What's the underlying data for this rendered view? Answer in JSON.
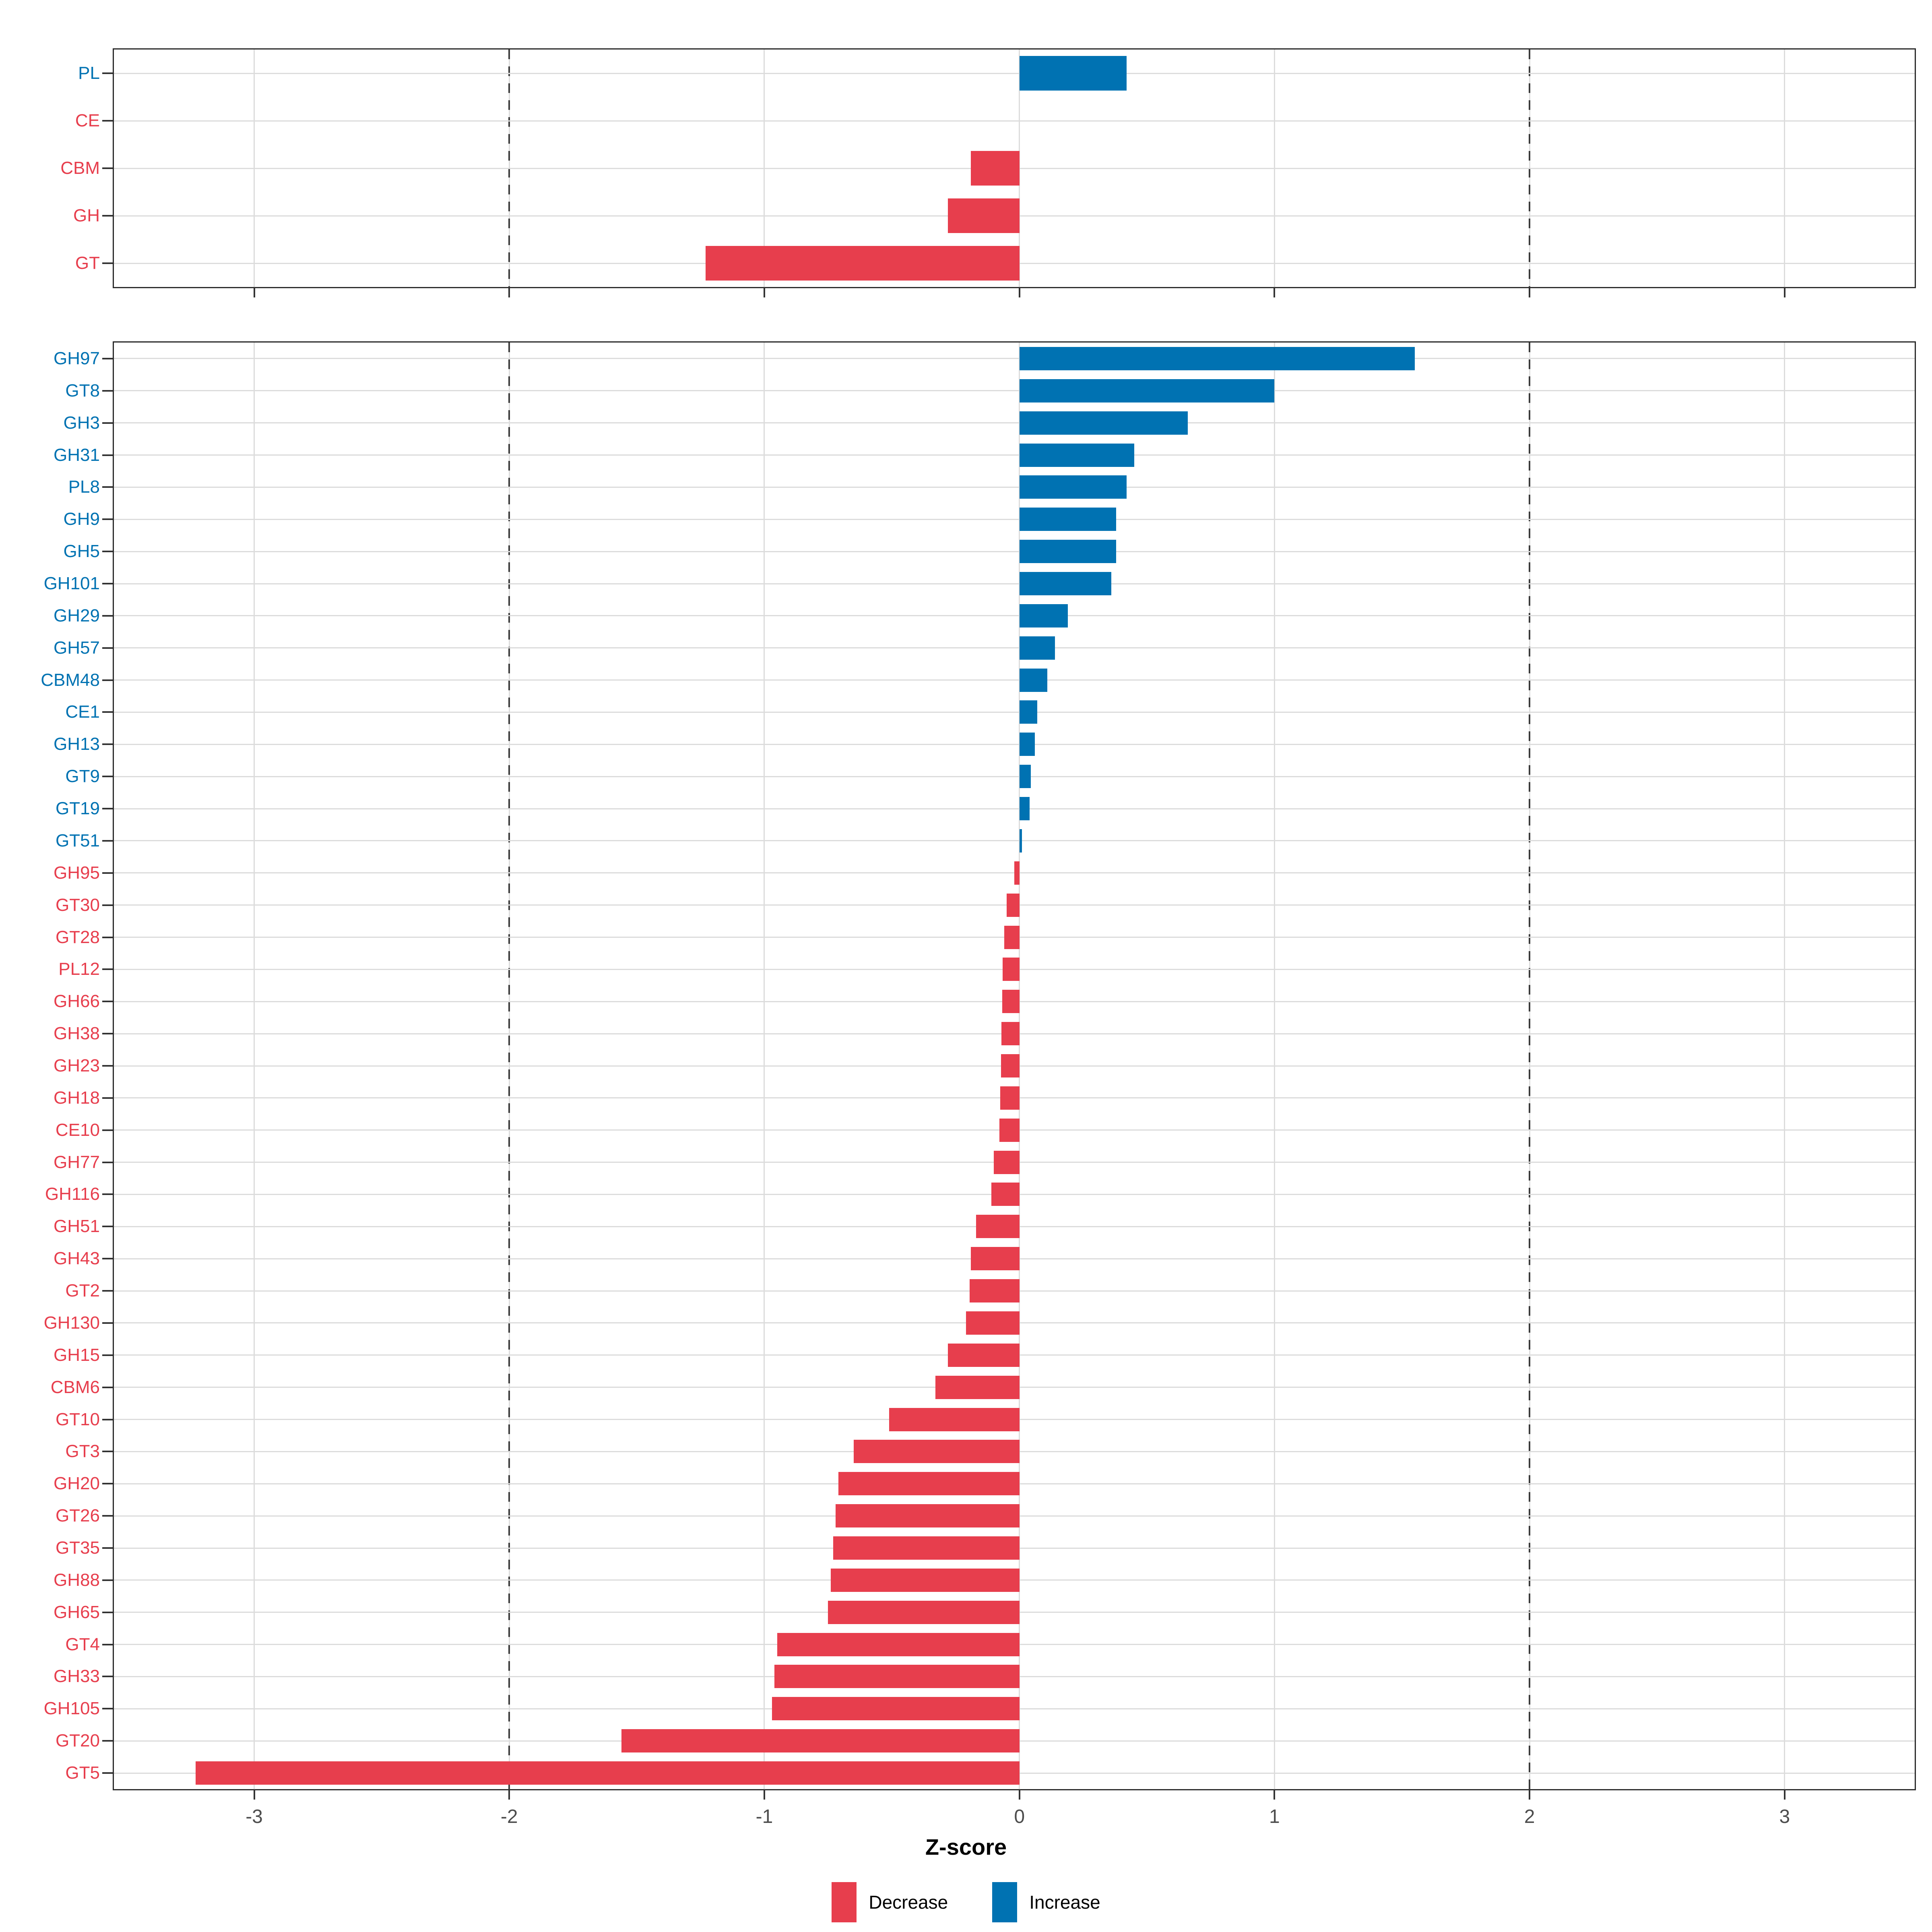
{
  "chart_data": {
    "type": "bar",
    "orientation": "horizontal",
    "title": "",
    "xlabel": "Z-score",
    "xlim": [
      -3.55,
      3.51
    ],
    "x_ticks": [
      -3,
      -2,
      -1,
      0,
      1,
      2,
      3
    ],
    "x_tick_labels": [
      "-3",
      "-2",
      "-1",
      "0",
      "1",
      "2",
      "3"
    ],
    "reference_dashed_lines": [
      -2,
      2
    ],
    "grid": true,
    "legend_position": "bottom",
    "colors": {
      "decrease": "#E73E4D",
      "increase": "#0072B2",
      "grid": "#dcdcdc",
      "dashed_line": "#3c3c3c",
      "axis_text": "#4d4d4d",
      "panel_border": "#2b2b2b"
    },
    "legend": {
      "items": [
        {
          "label": "Decrease",
          "key": "decrease"
        },
        {
          "label": "Increase",
          "key": "increase"
        }
      ]
    },
    "panels": [
      {
        "name": "cazyme-classes",
        "rows": [
          {
            "label": "PL",
            "value": 0.42,
            "direction": "increase"
          },
          {
            "label": "CE",
            "value": 0.0,
            "direction": "decrease"
          },
          {
            "label": "CBM",
            "value": -0.19,
            "direction": "decrease"
          },
          {
            "label": "GH",
            "value": -0.28,
            "direction": "decrease"
          },
          {
            "label": "GT",
            "value": -1.23,
            "direction": "decrease"
          }
        ]
      },
      {
        "name": "cazyme-families",
        "rows": [
          {
            "label": "GH97",
            "value": 1.55,
            "direction": "increase"
          },
          {
            "label": "GT8",
            "value": 1.0,
            "direction": "increase"
          },
          {
            "label": "GH3",
            "value": 0.66,
            "direction": "increase"
          },
          {
            "label": "GH31",
            "value": 0.45,
            "direction": "increase"
          },
          {
            "label": "PL8",
            "value": 0.42,
            "direction": "increase"
          },
          {
            "label": "GH9",
            "value": 0.38,
            "direction": "increase"
          },
          {
            "label": "GH5",
            "value": 0.38,
            "direction": "increase"
          },
          {
            "label": "GH101",
            "value": 0.36,
            "direction": "increase"
          },
          {
            "label": "GH29",
            "value": 0.19,
            "direction": "increase"
          },
          {
            "label": "GH57",
            "value": 0.14,
            "direction": "increase"
          },
          {
            "label": "CBM48",
            "value": 0.11,
            "direction": "increase"
          },
          {
            "label": "CE1",
            "value": 0.07,
            "direction": "increase"
          },
          {
            "label": "GH13",
            "value": 0.06,
            "direction": "increase"
          },
          {
            "label": "GT9",
            "value": 0.045,
            "direction": "increase"
          },
          {
            "label": "GT19",
            "value": 0.04,
            "direction": "increase"
          },
          {
            "label": "GT51",
            "value": 0.01,
            "direction": "increase"
          },
          {
            "label": "GH95",
            "value": -0.02,
            "direction": "decrease"
          },
          {
            "label": "GT30",
            "value": -0.05,
            "direction": "decrease"
          },
          {
            "label": "GT28",
            "value": -0.06,
            "direction": "decrease"
          },
          {
            "label": "PL12",
            "value": -0.065,
            "direction": "decrease"
          },
          {
            "label": "GH66",
            "value": -0.068,
            "direction": "decrease"
          },
          {
            "label": "GH38",
            "value": -0.07,
            "direction": "decrease"
          },
          {
            "label": "GH23",
            "value": -0.072,
            "direction": "decrease"
          },
          {
            "label": "GH18",
            "value": -0.075,
            "direction": "decrease"
          },
          {
            "label": "CE10",
            "value": -0.078,
            "direction": "decrease"
          },
          {
            "label": "GH77",
            "value": -0.1,
            "direction": "decrease"
          },
          {
            "label": "GH116",
            "value": -0.11,
            "direction": "decrease"
          },
          {
            "label": "GH51",
            "value": -0.17,
            "direction": "decrease"
          },
          {
            "label": "GH43",
            "value": -0.19,
            "direction": "decrease"
          },
          {
            "label": "GT2",
            "value": -0.195,
            "direction": "decrease"
          },
          {
            "label": "GH130",
            "value": -0.21,
            "direction": "decrease"
          },
          {
            "label": "GH15",
            "value": -0.28,
            "direction": "decrease"
          },
          {
            "label": "CBM6",
            "value": -0.33,
            "direction": "decrease"
          },
          {
            "label": "GT10",
            "value": -0.51,
            "direction": "decrease"
          },
          {
            "label": "GT3",
            "value": -0.65,
            "direction": "decrease"
          },
          {
            "label": "GH20",
            "value": -0.71,
            "direction": "decrease"
          },
          {
            "label": "GT26",
            "value": -0.72,
            "direction": "decrease"
          },
          {
            "label": "GT35",
            "value": -0.73,
            "direction": "decrease"
          },
          {
            "label": "GH88",
            "value": -0.74,
            "direction": "decrease"
          },
          {
            "label": "GH65",
            "value": -0.75,
            "direction": "decrease"
          },
          {
            "label": "GT4",
            "value": -0.95,
            "direction": "decrease"
          },
          {
            "label": "GH33",
            "value": -0.96,
            "direction": "decrease"
          },
          {
            "label": "GH105",
            "value": -0.97,
            "direction": "decrease"
          },
          {
            "label": "GT20",
            "value": -1.56,
            "direction": "decrease"
          },
          {
            "label": "GT5",
            "value": -3.23,
            "direction": "decrease"
          }
        ]
      }
    ]
  }
}
